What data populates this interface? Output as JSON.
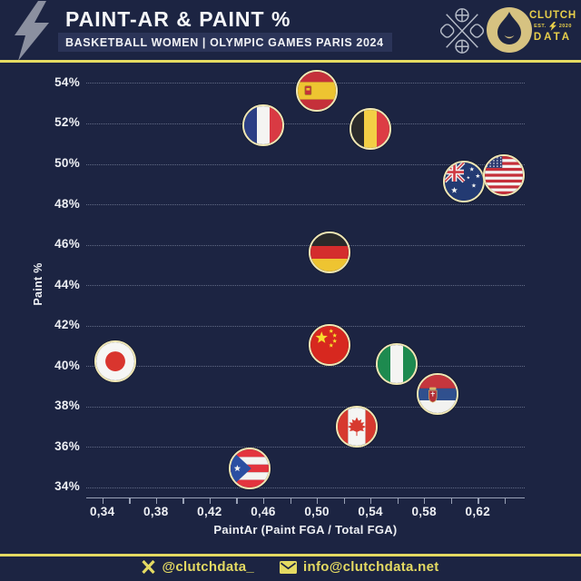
{
  "header": {
    "title": "PAINT-AR & PAINT %",
    "subtitle": "BASKETBALL WOMEN | OLYMPIC GAMES PARIS 2024",
    "brand": {
      "top": "CLUTCH",
      "est": "EST.",
      "year": "2020",
      "bottom": "DATA"
    }
  },
  "footer": {
    "twitter_handle": "@clutchdata_",
    "email": "info@clutchdata.net"
  },
  "colors": {
    "background": "#1c2442",
    "accent_yellow": "#e4da62",
    "logo_yellow": "#e8cf4a",
    "text_white": "#f2f3f5",
    "grid": "#9aa4be",
    "axis": "#9aa2b6",
    "flag_ring": "#f0e7b4",
    "subtitle_bg": "#2b3458",
    "paris_gold": "#d6c281",
    "bolt_gray": "#8b90a0"
  },
  "chart_data": {
    "type": "scatter",
    "title": "PAINT-AR & PAINT %",
    "subtitle": "BASKETBALL WOMEN | OLYMPIC GAMES PARIS 2024",
    "xlabel": "PaintAr (Paint FGA / Total FGA)",
    "ylabel": "Paint %",
    "xlim": [
      0.328,
      0.655
    ],
    "ylim": [
      33.5,
      54.6
    ],
    "grid": "horizontal-dotted",
    "legend": "none",
    "marker": "circular-country-flag",
    "x_ticks": [
      {
        "v": 0.34,
        "label": "0,34"
      },
      {
        "v": 0.36
      },
      {
        "v": 0.38,
        "label": "0,38"
      },
      {
        "v": 0.4
      },
      {
        "v": 0.42,
        "label": "0,42"
      },
      {
        "v": 0.44
      },
      {
        "v": 0.46,
        "label": "0,46"
      },
      {
        "v": 0.48
      },
      {
        "v": 0.5,
        "label": "0,50"
      },
      {
        "v": 0.52
      },
      {
        "v": 0.54,
        "label": "0,54"
      },
      {
        "v": 0.56
      },
      {
        "v": 0.58,
        "label": "0,58"
      },
      {
        "v": 0.6
      },
      {
        "v": 0.62,
        "label": "0,62"
      },
      {
        "v": 0.64
      }
    ],
    "y_ticks": [
      {
        "v": 34,
        "label": "34%"
      },
      {
        "v": 36,
        "label": "36%"
      },
      {
        "v": 38,
        "label": "38%"
      },
      {
        "v": 40,
        "label": "40%"
      },
      {
        "v": 42,
        "label": "42%"
      },
      {
        "v": 44,
        "label": "44%"
      },
      {
        "v": 46,
        "label": "46%"
      },
      {
        "v": 48,
        "label": "48%"
      },
      {
        "v": 50,
        "label": "50%"
      },
      {
        "v": 52,
        "label": "52%"
      },
      {
        "v": 54,
        "label": "54%"
      }
    ],
    "points": [
      {
        "team": "Japan",
        "flag": "jp",
        "paint_ar": 0.35,
        "paint_pct": 40.2
      },
      {
        "team": "Puerto Rico",
        "flag": "pr",
        "paint_ar": 0.45,
        "paint_pct": 34.9
      },
      {
        "team": "France",
        "flag": "fr",
        "paint_ar": 0.46,
        "paint_pct": 51.9
      },
      {
        "team": "Spain",
        "flag": "es",
        "paint_ar": 0.5,
        "paint_pct": 53.6
      },
      {
        "team": "Germany",
        "flag": "de",
        "paint_ar": 0.51,
        "paint_pct": 45.6
      },
      {
        "team": "China",
        "flag": "cn",
        "paint_ar": 0.51,
        "paint_pct": 41.0
      },
      {
        "team": "Canada",
        "flag": "ca",
        "paint_ar": 0.53,
        "paint_pct": 37.0
      },
      {
        "team": "Belgium",
        "flag": "be",
        "paint_ar": 0.54,
        "paint_pct": 51.7
      },
      {
        "team": "Nigeria",
        "flag": "ng",
        "paint_ar": 0.56,
        "paint_pct": 40.1
      },
      {
        "team": "Serbia",
        "flag": "rs",
        "paint_ar": 0.59,
        "paint_pct": 38.6
      },
      {
        "team": "Australia",
        "flag": "au",
        "paint_ar": 0.61,
        "paint_pct": 49.1
      },
      {
        "team": "United States",
        "flag": "us",
        "paint_ar": 0.64,
        "paint_pct": 49.4
      }
    ]
  }
}
